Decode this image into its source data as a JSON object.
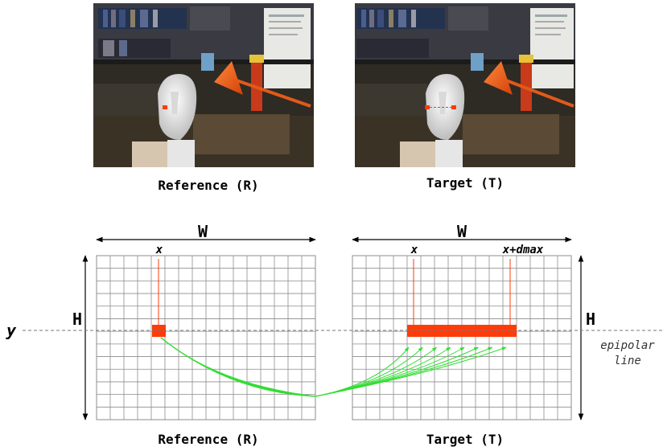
{
  "photos": {
    "reference_caption": "Reference (R)",
    "target_caption": "Target (T)"
  },
  "diagram": {
    "width_label": "W",
    "height_label": "H",
    "row_label": "y",
    "ref_col_label": "x",
    "tgt_col_label": "x",
    "tgt_max_label": "x+dmax",
    "epipolar_label_line1": "epipolar",
    "epipolar_label_line2": "line",
    "reference_caption": "Reference (R)",
    "target_caption": "Target (T)"
  },
  "colors": {
    "grid": "#8c8c8c",
    "highlight": "#ff3b0a",
    "match_lines": "#33dd33",
    "epipolar": "#777777"
  }
}
